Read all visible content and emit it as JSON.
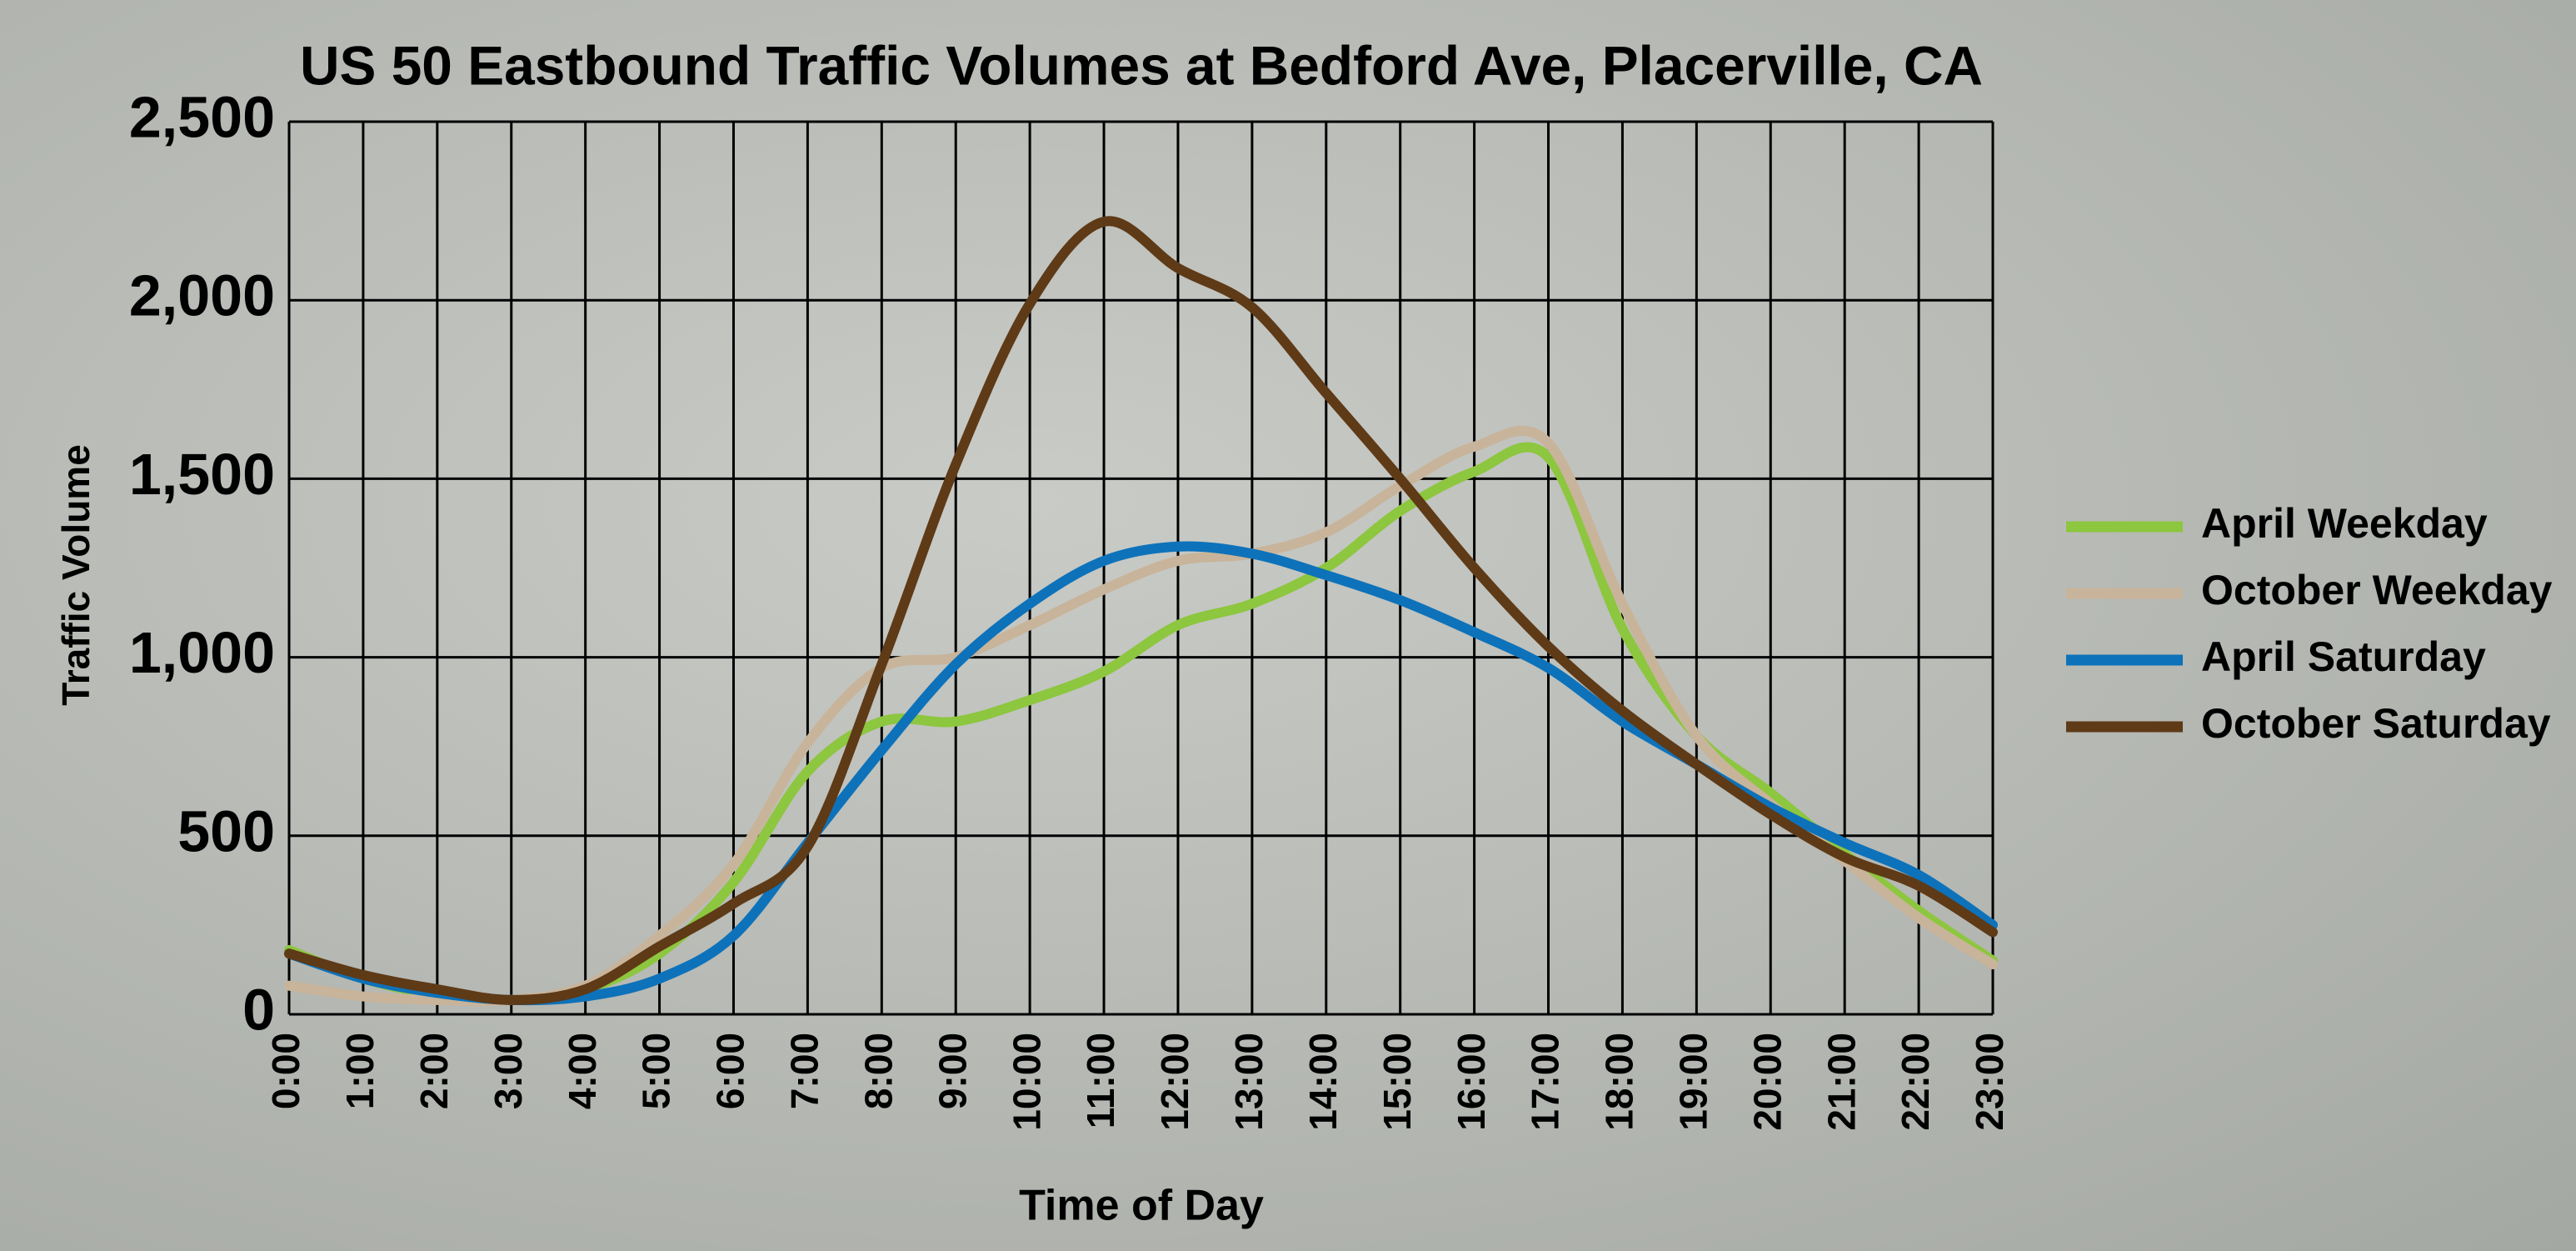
{
  "chart_data": {
    "type": "line",
    "title": "US 50 Eastbound Traffic Volumes at Bedford Ave, Placerville, CA",
    "x_label": "Time of Day",
    "y_label": "Traffic Volume",
    "categories": [
      "0:00",
      "1:00",
      "2:00",
      "3:00",
      "4:00",
      "5:00",
      "6:00",
      "7:00",
      "8:00",
      "9:00",
      "10:00",
      "11:00",
      "12:00",
      "13:00",
      "14:00",
      "15:00",
      "16:00",
      "17:00",
      "18:00",
      "19:00",
      "20:00",
      "21:00",
      "22:00",
      "23:00"
    ],
    "series": [
      {
        "name": "April Weekday",
        "color": "#8dc63f",
        "values": [
          180,
          100,
          55,
          40,
          70,
          170,
          370,
          680,
          820,
          820,
          880,
          960,
          1090,
          1150,
          1250,
          1410,
          1520,
          1560,
          1080,
          780,
          620,
          450,
          290,
          150
        ]
      },
      {
        "name": "October Weekday",
        "color": "#c8b49a",
        "values": [
          80,
          50,
          40,
          40,
          80,
          220,
          420,
          760,
          970,
          1000,
          1090,
          1190,
          1270,
          1290,
          1350,
          1480,
          1590,
          1600,
          1150,
          780,
          590,
          430,
          270,
          140
        ]
      },
      {
        "name": "April Saturday",
        "color": "#0d72ba",
        "values": [
          170,
          100,
          60,
          40,
          50,
          100,
          220,
          480,
          740,
          980,
          1150,
          1270,
          1310,
          1290,
          1230,
          1160,
          1070,
          970,
          820,
          700,
          580,
          480,
          390,
          250
        ]
      },
      {
        "name": "October Saturday",
        "color": "#5e3a17",
        "values": [
          170,
          110,
          70,
          40,
          70,
          190,
          310,
          470,
          980,
          1540,
          1990,
          2220,
          2090,
          1980,
          1740,
          1500,
          1250,
          1030,
          850,
          700,
          560,
          440,
          360,
          230
        ]
      }
    ],
    "ylim": [
      0,
      2500
    ],
    "yticks": [
      0,
      500,
      {
        "value": 1000,
        "label": "1,000"
      },
      {
        "value": 1500,
        "label": "1,500"
      },
      {
        "value": 2000,
        "label": "2,000"
      },
      {
        "value": 2500,
        "label": "2,500"
      }
    ],
    "grid": true,
    "legend": "right"
  }
}
